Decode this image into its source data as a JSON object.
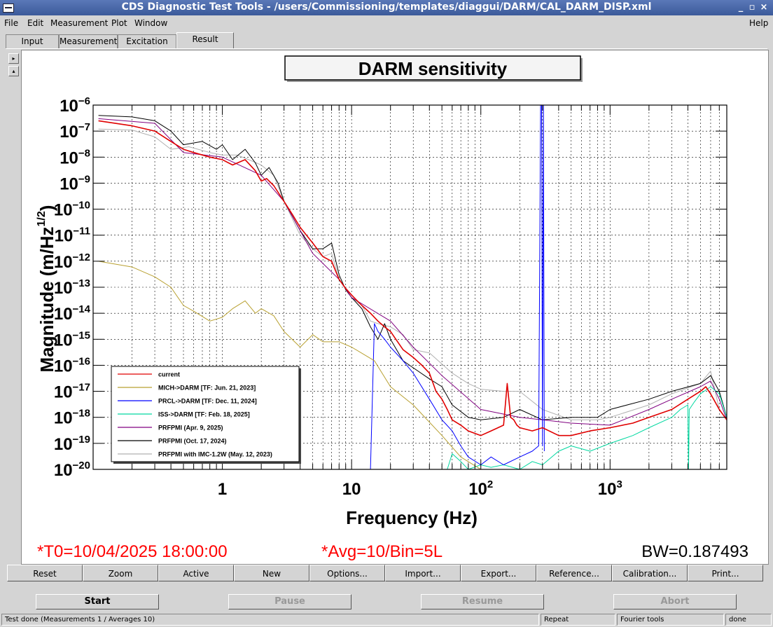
{
  "window": {
    "title": "CDS Diagnostic Test Tools - /users/Commissioning/templates/diaggui/DARM/CAL_DARM_DISP.xml",
    "minimize": "_",
    "maximize": "▫",
    "close": "×"
  },
  "menu": {
    "file": "File",
    "edit": "Edit",
    "measurement": "Measurement",
    "plot": "Plot",
    "window": "Window",
    "help": "Help"
  },
  "tabs": [
    "Input",
    "Measurement",
    "Excitation",
    "Result"
  ],
  "selected_tab": "Result",
  "side_buttons": {
    "up": "▸",
    "down": "▴"
  },
  "plot_info": {
    "t0": "*T0=10/04/2025 18:00:00",
    "avg": "*Avg=10/Bin=5L",
    "bw": "BW=0.187493",
    "t0_color": "#ff0000",
    "avg_color": "#ff0000",
    "bw_color": "#000000"
  },
  "chart_data": {
    "type": "line",
    "title": "DARM sensitivity",
    "xlabel": "Frequency (Hz)",
    "ylabel": "Magnitude (m/Hz^1/2)",
    "xscale": "log",
    "yscale": "log",
    "xlim": [
      0.1,
      8000
    ],
    "ylim": [
      1e-20,
      1e-06
    ],
    "grid": true,
    "legend_position": "bottom-left",
    "x_ticks": [
      {
        "label": "1",
        "value": 1
      },
      {
        "label": "10",
        "value": 10
      },
      {
        "label": "10",
        "sup": "2",
        "value": 100
      },
      {
        "label": "10",
        "sup": "3",
        "value": 1000
      }
    ],
    "y_ticks": [
      {
        "base": "10",
        "sup": "−6",
        "value": -6
      },
      {
        "base": "10",
        "sup": "−7",
        "value": -7
      },
      {
        "base": "10",
        "sup": "−8",
        "value": -8
      },
      {
        "base": "10",
        "sup": "−9",
        "value": -9
      },
      {
        "base": "10",
        "sup": "−10",
        "value": -10
      },
      {
        "base": "10",
        "sup": "−11",
        "value": -11
      },
      {
        "base": "10",
        "sup": "−12",
        "value": -12
      },
      {
        "base": "10",
        "sup": "−13",
        "value": -13
      },
      {
        "base": "10",
        "sup": "−14",
        "value": -14
      },
      {
        "base": "10",
        "sup": "−15",
        "value": -15
      },
      {
        "base": "10",
        "sup": "−16",
        "value": -16
      },
      {
        "base": "10",
        "sup": "−17",
        "value": -17
      },
      {
        "base": "10",
        "sup": "−18",
        "value": -18
      },
      {
        "base": "10",
        "sup": "−19",
        "value": -19
      },
      {
        "base": "10",
        "sup": "−20",
        "value": -20
      }
    ],
    "series": [
      {
        "name": "PRFPMI with IMC-1.2W (May. 12, 2023)",
        "color": "#b0b0b0",
        "width": 1,
        "x": [
          0.11,
          0.2,
          0.3,
          0.4,
          0.55,
          0.8,
          1,
          1.3,
          1.6,
          2,
          2.5,
          3,
          4,
          5,
          6,
          7,
          8,
          10,
          12,
          14,
          16,
          20,
          25,
          30,
          40,
          60,
          80,
          100,
          150,
          200,
          300,
          500,
          800,
          1000,
          2000,
          3000,
          5000,
          6000,
          7000,
          8000
        ],
        "y": [
          1.2e-07,
          1.1e-07,
          6e-08,
          2e-08,
          2.5e-08,
          1.5e-08,
          1.2e-08,
          1.2e-08,
          8e-09,
          5e-09,
          2e-09,
          2e-10,
          1e-11,
          3e-12,
          1.5e-12,
          2e-12,
          2e-13,
          4e-14,
          2e-14,
          5e-15,
          4e-15,
          3e-15,
          1.5e-15,
          4e-16,
          3e-16,
          5e-17,
          2e-17,
          1.2e-17,
          1e-17,
          1e-17,
          2e-18,
          8e-19,
          8e-19,
          1e-18,
          3e-18,
          8e-18,
          2e-17,
          6e-17,
          2e-18,
          8e-19
        ]
      },
      {
        "name": "PRFPMI (Oct. 17, 2024)",
        "color": "#000000",
        "width": 1,
        "x": [
          0.11,
          0.2,
          0.3,
          0.4,
          0.5,
          0.7,
          0.9,
          1,
          1.2,
          1.5,
          1.8,
          2,
          2.3,
          2.7,
          3,
          3.5,
          4,
          5,
          6,
          7,
          8,
          9,
          10,
          12,
          14,
          16,
          18,
          20,
          25,
          30,
          40,
          50,
          60,
          80,
          100,
          150,
          200,
          300,
          500,
          800,
          1000,
          2000,
          3000,
          5000,
          6000,
          7000,
          8000
        ],
        "y": [
          4e-07,
          3.5e-07,
          2.5e-07,
          1e-07,
          3e-08,
          4e-08,
          2e-08,
          3e-08,
          8e-09,
          2e-08,
          6e-09,
          2e-09,
          4e-09,
          1e-09,
          2e-10,
          5e-11,
          1.5e-11,
          3e-12,
          3e-12,
          5e-12,
          3e-13,
          8e-14,
          4e-14,
          1.5e-14,
          3e-15,
          1e-15,
          4e-15,
          1e-15,
          1.5e-16,
          8e-17,
          3e-17,
          1.5e-17,
          3e-18,
          1e-18,
          8e-19,
          1e-18,
          2e-18,
          8e-19,
          1e-18,
          1e-18,
          2e-18,
          5e-18,
          1e-17,
          2e-17,
          4e-17,
          1e-17,
          1e-18
        ]
      },
      {
        "name": "PRFPMI (Apr. 9, 2025)",
        "color": "#800080",
        "width": 1,
        "x": [
          0.11,
          0.3,
          0.5,
          1,
          2,
          3,
          5,
          8,
          10,
          20,
          30,
          50,
          100,
          200,
          300,
          500,
          1000,
          2000,
          3000,
          5000,
          6000,
          7000,
          8000
        ],
        "y": [
          3e-07,
          2e-07,
          1.5e-08,
          1e-08,
          2e-09,
          2e-10,
          2e-12,
          2e-13,
          4e-14,
          5e-15,
          5e-16,
          4e-17,
          2e-18,
          1e-18,
          8e-19,
          6e-19,
          5e-19,
          2e-18,
          5e-18,
          1.5e-17,
          2.5e-17,
          5e-18,
          8e-19
        ]
      },
      {
        "name": "ISS->DARM [TF: Feb. 18, 2025]",
        "color": "#00d8a0",
        "width": 1,
        "x": [
          55,
          60,
          70,
          80,
          100,
          120,
          150,
          200,
          250,
          300,
          400,
          500,
          700,
          1000,
          1500,
          2000,
          3000,
          3500,
          4000,
          4050,
          4100,
          4500,
          5000,
          6000,
          7000,
          8000
        ],
        "y": [
          1e-20,
          4e-20,
          2e-20,
          1e-20,
          1.5e-20,
          1.2e-20,
          1.5e-20,
          1e-20,
          2e-20,
          1.5e-20,
          5e-20,
          8e-20,
          5e-20,
          1e-19,
          2e-19,
          4e-19,
          1e-18,
          2e-18,
          3e-18,
          1e-20,
          2e-18,
          4e-18,
          8e-18,
          1.5e-17,
          8e-18,
          1e-18
        ]
      },
      {
        "name": "PRCL->DARM [TF: Dec. 11, 2024]",
        "color": "#0000ff",
        "width": 1,
        "x": [
          14,
          15,
          16,
          18,
          20,
          25,
          30,
          40,
          50,
          60,
          70,
          80,
          100,
          120,
          150,
          200,
          250,
          280,
          290,
          295,
          300,
          305,
          310
        ],
        "y": [
          1e-20,
          4e-15,
          2e-15,
          1e-15,
          5e-16,
          1.5e-16,
          5e-17,
          5e-18,
          8e-19,
          3e-19,
          8e-20,
          3e-20,
          1.5e-20,
          3e-20,
          1.5e-20,
          3e-20,
          5e-20,
          8e-20,
          1e-06,
          1e-06,
          8e-20,
          1e-06,
          5e-20
        ]
      },
      {
        "name": "MICH->DARM [TF: Jun. 21, 2023]",
        "color": "#b8a030",
        "width": 1,
        "x": [
          0.11,
          0.2,
          0.3,
          0.4,
          0.5,
          0.6,
          0.8,
          1,
          1.2,
          1.5,
          1.8,
          2,
          2.5,
          3,
          4,
          5,
          6,
          8,
          10,
          15,
          20,
          30,
          50,
          70,
          100
        ],
        "y": [
          1e-12,
          6e-13,
          2.5e-13,
          1e-13,
          2e-14,
          1.2e-14,
          5e-15,
          7e-15,
          1.5e-14,
          3e-14,
          1e-14,
          1.5e-14,
          8e-15,
          2e-15,
          5e-16,
          1.5e-15,
          8e-16,
          8e-16,
          5e-16,
          1.5e-16,
          1.5e-17,
          3e-18,
          2e-19,
          3e-20,
          1e-20
        ]
      },
      {
        "name": "current",
        "color": "#e00000",
        "width": 1.6,
        "x": [
          0.11,
          0.2,
          0.3,
          0.4,
          0.5,
          0.6,
          0.8,
          1,
          1.2,
          1.5,
          1.8,
          2,
          2.2,
          2.5,
          3,
          3.5,
          4,
          5,
          6,
          7,
          8,
          9,
          10,
          12,
          14,
          16,
          18,
          20,
          22,
          25,
          30,
          35,
          40,
          45,
          50,
          55,
          60,
          70,
          80,
          100,
          120,
          150,
          160,
          170,
          180,
          190,
          200,
          250,
          300,
          400,
          500,
          700,
          1000,
          1500,
          2000,
          3000,
          4000,
          5000,
          5500,
          6000,
          7000,
          8000
        ],
        "y": [
          2.5e-07,
          1.6e-07,
          1e-07,
          4e-08,
          2e-08,
          1.5e-08,
          1e-08,
          8e-09,
          5e-09,
          8e-09,
          3e-09,
          1.2e-09,
          1.5e-09,
          8e-10,
          2e-10,
          6e-11,
          2e-11,
          5e-12,
          1.5e-12,
          1e-12,
          2e-13,
          9e-14,
          5e-14,
          2e-14,
          1e-14,
          5e-15,
          3e-15,
          2e-15,
          1e-15,
          4e-16,
          2e-16,
          1e-16,
          5e-17,
          1e-17,
          5e-18,
          2e-18,
          8e-19,
          5e-19,
          3e-19,
          2e-19,
          3e-19,
          5e-19,
          2e-17,
          1e-18,
          8e-19,
          5e-19,
          4e-19,
          3e-19,
          4e-19,
          2e-19,
          2e-19,
          3e-19,
          4e-19,
          6e-19,
          1e-18,
          2e-18,
          5e-18,
          1e-17,
          1.5e-17,
          8e-18,
          2e-18,
          8e-19
        ]
      }
    ]
  },
  "buttons": [
    "Reset",
    "Zoom",
    "Active",
    "New",
    "Options...",
    "Import...",
    "Export...",
    "Reference...",
    "Calibration...",
    "Print..."
  ],
  "controls": {
    "start": "Start",
    "pause": "Pause",
    "resume": "Resume",
    "abort": "Abort"
  },
  "status": {
    "message": "Test done (Measurements 1 / Averages 10)",
    "mode": "Repeat",
    "tools": "Fourier tools",
    "state": "done"
  }
}
